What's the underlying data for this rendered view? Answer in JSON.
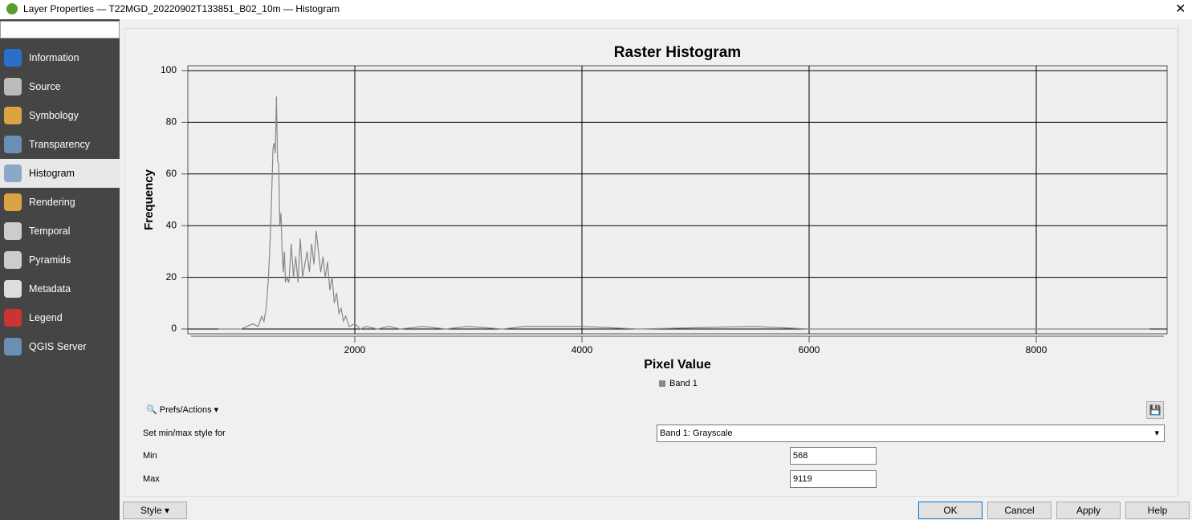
{
  "window": {
    "title": "Layer Properties — T22MGD_20220902T133851_B02_10m — Histogram"
  },
  "sidebar": {
    "items": [
      "Information",
      "Source",
      "Symbology",
      "Transparency",
      "Histogram",
      "Rendering",
      "Temporal",
      "Pyramids",
      "Metadata",
      "Legend",
      "QGIS Server"
    ]
  },
  "chart_data": {
    "type": "line",
    "title": "Raster Histogram",
    "x_label": "Pixel Value",
    "y_label": "Frequency",
    "x": [
      800,
      900,
      1000,
      1050,
      1100,
      1150,
      1180,
      1200,
      1220,
      1240,
      1260,
      1270,
      1280,
      1290,
      1300,
      1310,
      1320,
      1330,
      1340,
      1350,
      1360,
      1370,
      1380,
      1390,
      1400,
      1420,
      1440,
      1460,
      1480,
      1500,
      1520,
      1540,
      1560,
      1580,
      1600,
      1620,
      1640,
      1660,
      1680,
      1700,
      1720,
      1740,
      1760,
      1780,
      1800,
      1820,
      1840,
      1860,
      1880,
      1900,
      1920,
      1950,
      2000,
      2050,
      2100,
      2200,
      2300,
      2400,
      2600,
      2800,
      3000,
      3300,
      3500,
      4000,
      4500,
      5500,
      6000,
      7000,
      8000,
      9000
    ],
    "series": [
      {
        "name": "Band 1",
        "color": "#888888",
        "values": [
          0,
          0,
          0,
          1,
          2,
          1,
          5,
          3,
          8,
          20,
          40,
          55,
          70,
          72,
          68,
          90,
          65,
          64,
          40,
          45,
          30,
          22,
          30,
          18,
          20,
          18,
          33,
          20,
          28,
          18,
          35,
          20,
          25,
          30,
          22,
          33,
          25,
          38,
          30,
          22,
          28,
          20,
          26,
          15,
          20,
          10,
          14,
          6,
          8,
          3,
          5,
          1,
          2,
          0,
          1,
          0,
          1,
          0,
          1,
          0,
          1,
          0,
          1,
          1,
          0,
          1,
          0,
          0,
          0,
          0
        ]
      }
    ],
    "xlim": [
      530,
      9152
    ],
    "ylim": [
      0,
      100
    ],
    "xticks": [
      2000,
      4000,
      6000,
      8000
    ],
    "yticks": [
      0,
      20,
      40,
      60,
      80,
      100
    ],
    "grid": true
  },
  "controls": {
    "prefs_actions": "Prefs/Actions",
    "minmax_label": "Set min/max style for",
    "band_select": "Band 1: Grayscale",
    "min_label": "Min",
    "min_value": 568,
    "max_label": "Max",
    "max_value": 9119
  },
  "buttons": {
    "style": "Style",
    "ok": "OK",
    "cancel": "Cancel",
    "apply": "Apply",
    "help": "Help"
  }
}
